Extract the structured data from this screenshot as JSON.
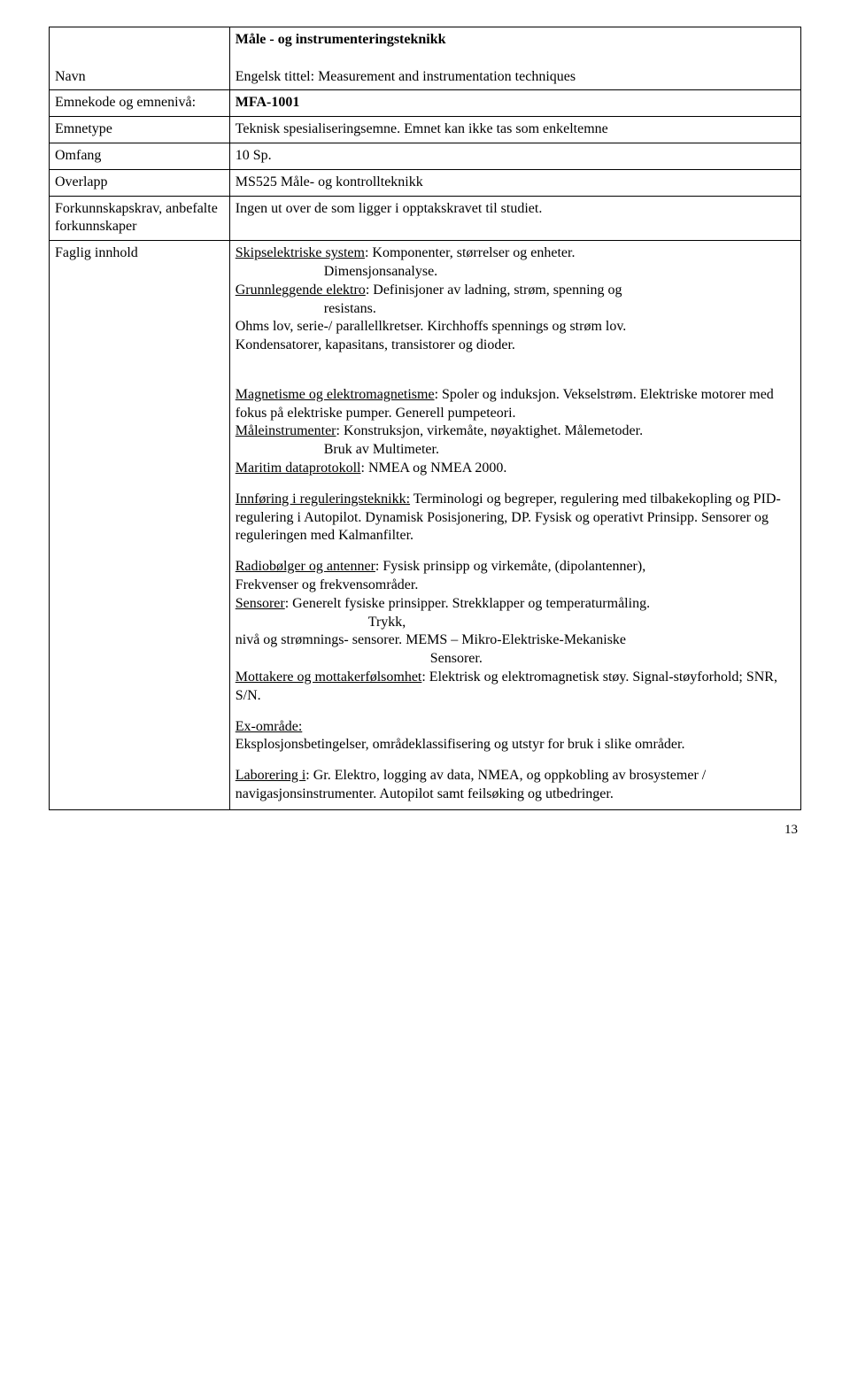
{
  "rows": {
    "navn_label": "Navn",
    "navn_value_line1": "Måle - og instrumenteringsteknikk",
    "navn_value_line2": "Engelsk tittel: Measurement and instrumentation techniques",
    "emnekode_label": "Emnekode og emnenivå:",
    "emnekode_value": "MFA-1001",
    "emnetype_label": "Emnetype",
    "emnetype_value": "Teknisk spesialiseringsemne. Emnet kan ikke tas som enkeltemne",
    "omfang_label": "Omfang",
    "omfang_value": "10 Sp.",
    "overlapp_label": "Overlapp",
    "overlapp_value": "MS525 Måle- og kontrollteknikk",
    "forkunn_label": "Forkunnskapskrav, anbefalte forkunnskaper",
    "forkunn_value": "Ingen ut over de som ligger i opptakskravet til studiet.",
    "faglig_label": "Faglig innhold"
  },
  "faglig": {
    "p1a_u": "Skipselektriske system",
    "p1a_rest": ": Komponenter, størrelser og enheter.",
    "p1b_indent": "Dimensjonsanalyse.",
    "p1c_u": "Grunnleggende elektro",
    "p1c_rest": ": Definisjoner av ladning, strøm, spenning og",
    "p1d_indent": "resistans.",
    "p1e": "Ohms lov, serie-/ parallellkretser. Kirchhoffs spennings og strøm lov.",
    "p1f": "Kondensatorer, kapasitans, transistorer og dioder.",
    "p2a_u": "Magnetisme og elektromagnetisme",
    "p2a_rest": ": Spoler og induksjon. Vekselstrøm. Elektriske motorer med fokus på elektriske pumper. Generell pumpeteori.",
    "p2b_u": "Måleinstrumenter",
    "p2b_rest": ": Konstruksjon, virkemåte, nøyaktighet. Målemetoder.",
    "p2c_indent": "Bruk av Multimeter.",
    "p2d_u": "Maritim dataprotokoll",
    "p2d_rest": ": NMEA og NMEA 2000.",
    "p3_u": "Innføring i reguleringsteknikk:",
    "p3_rest": " Terminologi og begreper, regulering med tilbakekopling og PID-regulering i Autopilot. Dynamisk Posisjonering, DP. Fysisk og operativt Prinsipp. Sensorer og reguleringen med Kalmanfilter.",
    "p4a_u": "Radiobølger og antenner",
    "p4a_rest": ": Fysisk prinsipp og virkemåte, (dipolantenner),",
    "p4b": "Frekvenser og frekvensområder.",
    "p4c_u": "Sensorer",
    "p4c_rest": ": Generelt fysiske prinsipper. Strekklapper og temperaturmåling.",
    "p4d_indent": "Trykk,",
    "p4e": "nivå og strømnings- sensorer. MEMS – Mikro-Elektriske-Mekaniske",
    "p4f_indent": "Sensorer.",
    "p4g_u": "Mottakere og mottakerfølsomhet",
    "p4g_rest": ": Elektrisk og elektromagnetisk støy. Signal-støyforhold; SNR, S/N.",
    "p5_u": "Ex-område:",
    "p5_rest": "Eksplosjonsbetingelser, områdeklassifisering og utstyr for bruk i slike områder.",
    "p6_u": "Laborering i",
    "p6_rest": ": Gr. Elektro, logging av data, NMEA, og oppkobling av brosystemer / navigasjonsinstrumenter. Autopilot samt feilsøking og utbedringer."
  },
  "pagenum": "13"
}
